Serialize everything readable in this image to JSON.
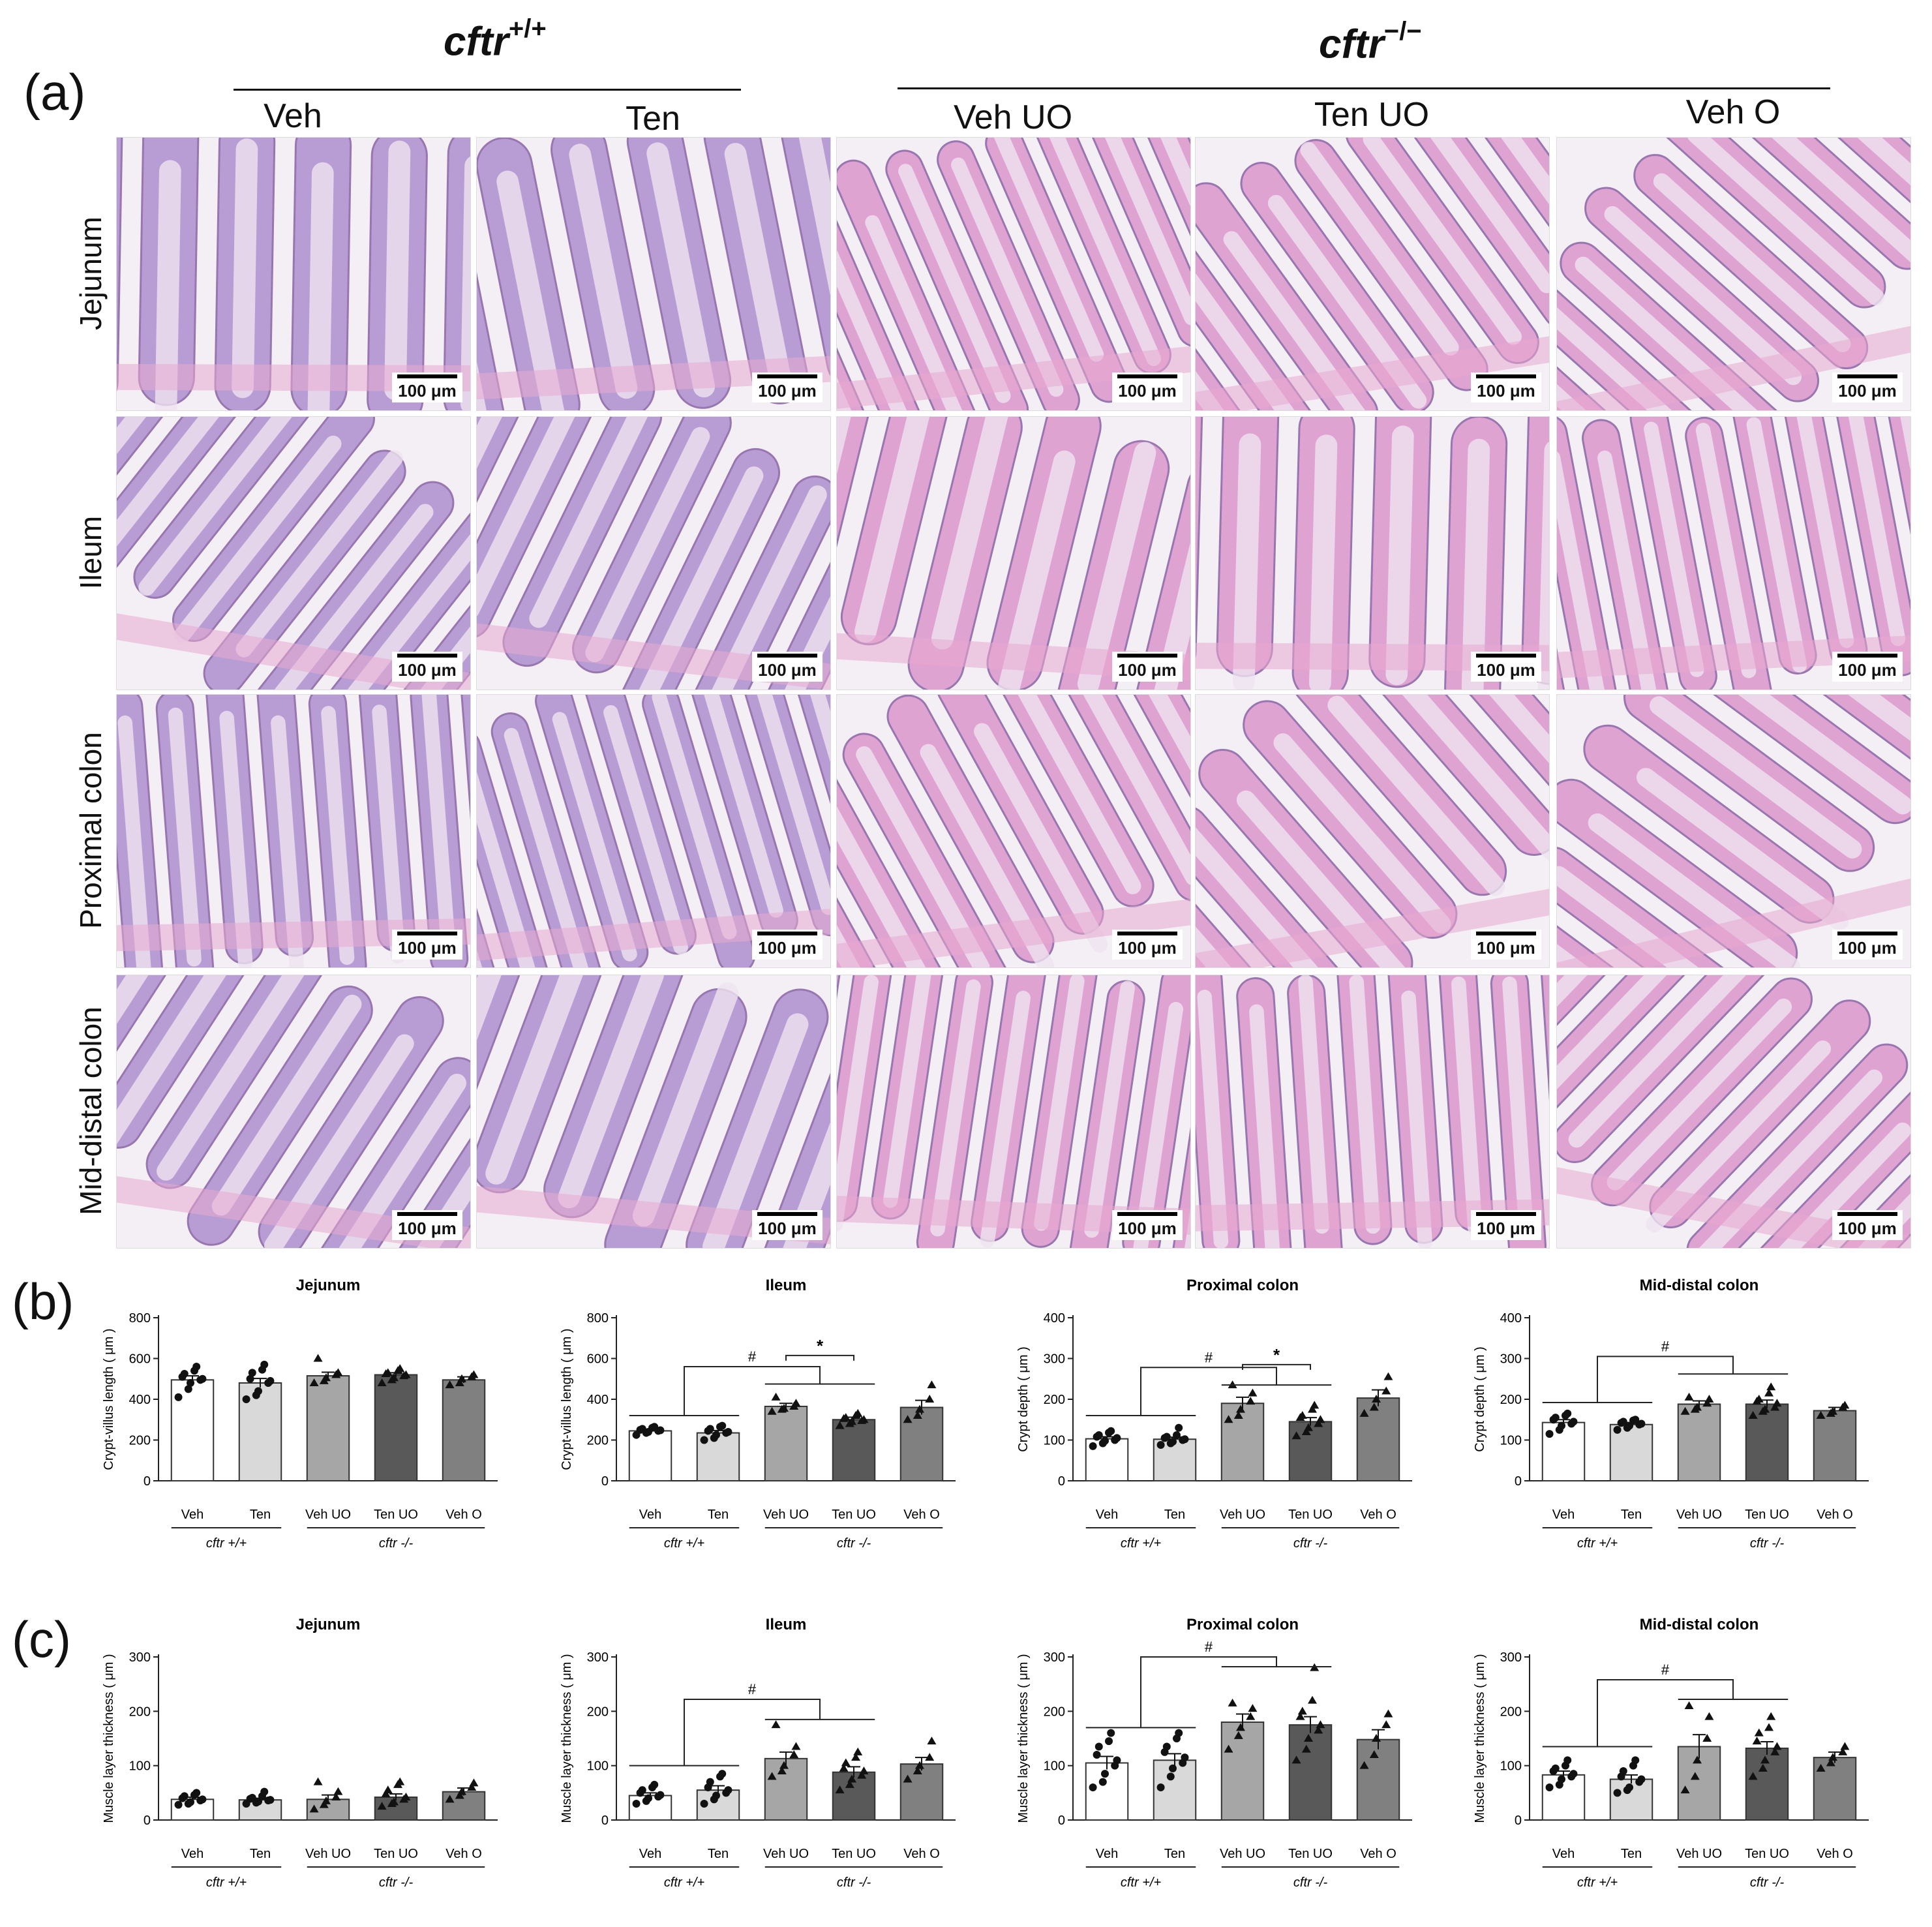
{
  "panel_labels": {
    "a": "(a)",
    "b": "(b)",
    "c": "(c)"
  },
  "genotypes": {
    "wt": {
      "name": "cftr",
      "sup": "+/+"
    },
    "ko": {
      "name": "cftr",
      "sup": "−/−"
    }
  },
  "columns": [
    "Veh",
    "Ten",
    "Veh UO",
    "Ten UO",
    "Veh O"
  ],
  "rows": [
    "Jejunum",
    "Ileum",
    "Proximal colon",
    "Mid-distal colon"
  ],
  "scale_bar": "100 μm",
  "colors": {
    "veh": "#ffffff",
    "ten": "#d9d9d9",
    "veh_uo": "#a6a6a6",
    "ten_uo": "#595959",
    "veh_o": "#808080",
    "tissue_pink": "#d98bc6",
    "tissue_purple": "#a583c9",
    "background": "#f4eef5"
  },
  "group_labels": {
    "wt": "cftr +/+",
    "ko": "cftr -/-"
  },
  "chart_data": [
    {
      "panel": "b",
      "type": "bar",
      "title": "Jejunum",
      "ylabel": "Crypt-villus length ( μm )",
      "ylim": [
        0,
        800
      ],
      "yticks": [
        0,
        200,
        400,
        600,
        800
      ],
      "categories": [
        "Veh",
        "Ten",
        "Veh UO",
        "Ten UO",
        "Veh O"
      ],
      "values": [
        495,
        480,
        515,
        520,
        495
      ],
      "sem": [
        20,
        22,
        18,
        10,
        15
      ],
      "points": [
        [
          410,
          450,
          480,
          495,
          500,
          510,
          525,
          540,
          560
        ],
        [
          400,
          420,
          440,
          480,
          490,
          500,
          530,
          545,
          570
        ],
        [
          480,
          490,
          505,
          520,
          530,
          600
        ],
        [
          480,
          495,
          505,
          515,
          520,
          525,
          530,
          540,
          550
        ],
        [
          470,
          480,
          500,
          510,
          520
        ]
      ],
      "annotations": []
    },
    {
      "panel": "b",
      "type": "bar",
      "title": "Ileum",
      "ylabel": "Crypt-villus length ( μm )",
      "ylim": [
        0,
        800
      ],
      "yticks": [
        0,
        200,
        400,
        600,
        800
      ],
      "categories": [
        "Veh",
        "Ten",
        "Veh UO",
        "Ten UO",
        "Veh O"
      ],
      "values": [
        245,
        235,
        365,
        300,
        360
      ],
      "sem": [
        8,
        12,
        15,
        12,
        35
      ],
      "points": [
        [
          225,
          235,
          240,
          245,
          248,
          250,
          255,
          260,
          265
        ],
        [
          200,
          210,
          225,
          235,
          240,
          245,
          255,
          265,
          270
        ],
        [
          340,
          350,
          355,
          365,
          380,
          410
        ],
        [
          270,
          280,
          290,
          295,
          300,
          305,
          310,
          320,
          330
        ],
        [
          300,
          320,
          350,
          400,
          470
        ]
      ],
      "annotations": [
        {
          "type": "bracket-lr",
          "left": [
            0,
            1
          ],
          "right": [
            2,
            3
          ],
          "left_y": 320,
          "right_y": 475,
          "top_y": 560,
          "label": "#"
        },
        {
          "type": "bar",
          "from": 2,
          "to": 3,
          "y": 615,
          "label": "*"
        }
      ]
    },
    {
      "panel": "b",
      "type": "bar",
      "title": "Proximal colon",
      "ylabel": "Crypt depth ( μm )",
      "ylim": [
        0,
        400
      ],
      "yticks": [
        0,
        100,
        200,
        300,
        400
      ],
      "categories": [
        "Veh",
        "Ten",
        "Veh UO",
        "Ten UO",
        "Veh O"
      ],
      "values": [
        103,
        102,
        190,
        145,
        203
      ],
      "sem": [
        5,
        5,
        15,
        10,
        20
      ],
      "points": [
        [
          85,
          92,
          98,
          100,
          105,
          108,
          112,
          118,
          122
        ],
        [
          88,
          92,
          96,
          100,
          102,
          105,
          108,
          112,
          130
        ],
        [
          150,
          160,
          175,
          195,
          215,
          235
        ],
        [
          110,
          120,
          130,
          140,
          150,
          155,
          160,
          175,
          185
        ],
        [
          165,
          180,
          200,
          220,
          255
        ]
      ],
      "annotations": [
        {
          "type": "bracket-lr",
          "left": [
            0,
            1
          ],
          "right": [
            2,
            3
          ],
          "left_y": 160,
          "right_y": 235,
          "top_y": 278,
          "label": "#"
        },
        {
          "type": "bar",
          "from": 2,
          "to": 3,
          "y": 285,
          "label": "*"
        }
      ]
    },
    {
      "panel": "b",
      "type": "bar",
      "title": "Mid-distal colon",
      "ylabel": "Crypt depth ( μm )",
      "ylim": [
        0,
        400
      ],
      "yticks": [
        0,
        100,
        200,
        300,
        400
      ],
      "categories": [
        "Veh",
        "Ten",
        "Veh UO",
        "Ten UO",
        "Veh O"
      ],
      "values": [
        143,
        138,
        188,
        188,
        172
      ],
      "sem": [
        7,
        5,
        8,
        10,
        8
      ],
      "points": [
        [
          115,
          125,
          135,
          140,
          145,
          150,
          155,
          160,
          165
        ],
        [
          125,
          130,
          135,
          138,
          140,
          142,
          145,
          148,
          150
        ],
        [
          170,
          175,
          180,
          190,
          200,
          205
        ],
        [
          160,
          170,
          175,
          180,
          190,
          195,
          200,
          215,
          230
        ],
        [
          160,
          165,
          170,
          180,
          185
        ]
      ],
      "annotations": [
        {
          "type": "bracket-lr",
          "left": [
            0,
            1
          ],
          "right": [
            2,
            3
          ],
          "left_y": 192,
          "right_y": 262,
          "top_y": 305,
          "label": "#"
        }
      ]
    },
    {
      "panel": "c",
      "type": "bar",
      "title": "Jejunum",
      "ylabel": "Muscle layer thickness ( μm )",
      "ylim": [
        0,
        300
      ],
      "yticks": [
        0,
        100,
        200,
        300
      ],
      "categories": [
        "Veh",
        "Ten",
        "Veh UO",
        "Ten UO",
        "Veh O"
      ],
      "values": [
        38,
        37,
        38,
        42,
        52
      ],
      "sem": [
        4,
        3,
        8,
        6,
        7
      ],
      "points": [
        [
          28,
          30,
          33,
          36,
          38,
          40,
          44,
          46,
          50
        ],
        [
          30,
          32,
          34,
          36,
          37,
          39,
          41,
          44,
          52
        ],
        [
          20,
          28,
          35,
          42,
          52,
          70
        ],
        [
          25,
          30,
          33,
          38,
          42,
          48,
          55,
          65,
          70
        ],
        [
          38,
          45,
          52,
          60,
          68
        ]
      ],
      "annotations": []
    },
    {
      "panel": "c",
      "type": "bar",
      "title": "Ileum",
      "ylabel": "Muscle layer thickness ( μm )",
      "ylim": [
        0,
        300
      ],
      "yticks": [
        0,
        100,
        200,
        300
      ],
      "categories": [
        "Veh",
        "Ten",
        "Veh UO",
        "Ten UO",
        "Veh O"
      ],
      "values": [
        45,
        55,
        113,
        88,
        103
      ],
      "sem": [
        5,
        8,
        12,
        10,
        12
      ],
      "points": [
        [
          30,
          35,
          40,
          43,
          46,
          50,
          55,
          60,
          65
        ],
        [
          30,
          38,
          45,
          50,
          55,
          60,
          70,
          80,
          85
        ],
        [
          80,
          90,
          100,
          120,
          135,
          175
        ],
        [
          55,
          65,
          75,
          82,
          90,
          95,
          105,
          115,
          125
        ],
        [
          75,
          90,
          100,
          115,
          145
        ]
      ],
      "annotations": [
        {
          "type": "bracket-lr",
          "left": [
            0,
            1
          ],
          "right": [
            2,
            3
          ],
          "left_y": 100,
          "right_y": 185,
          "top_y": 222,
          "label": "#"
        }
      ]
    },
    {
      "panel": "c",
      "type": "bar",
      "title": "Proximal colon",
      "ylabel": "Muscle layer thickness ( μm )",
      "ylim": [
        0,
        300
      ],
      "yticks": [
        0,
        100,
        200,
        300
      ],
      "categories": [
        "Veh",
        "Ten",
        "Veh UO",
        "Ten UO",
        "Veh O"
      ],
      "values": [
        105,
        110,
        180,
        175,
        148
      ],
      "sem": [
        12,
        12,
        15,
        15,
        18
      ],
      "points": [
        [
          60,
          70,
          85,
          100,
          110,
          120,
          135,
          145,
          160
        ],
        [
          60,
          80,
          95,
          105,
          115,
          125,
          135,
          150,
          160
        ],
        [
          130,
          155,
          170,
          190,
          205,
          215
        ],
        [
          110,
          130,
          150,
          165,
          175,
          190,
          200,
          220,
          280
        ],
        [
          100,
          120,
          150,
          175,
          195
        ]
      ],
      "annotations": [
        {
          "type": "bracket-lr",
          "left": [
            0,
            1
          ],
          "right": [
            2,
            3
          ],
          "left_y": 170,
          "right_y": 282,
          "top_y": 300,
          "label": "#"
        }
      ]
    },
    {
      "panel": "c",
      "type": "bar",
      "title": "Mid-distal colon",
      "ylabel": "Muscle layer thickness ( μm )",
      "ylim": [
        0,
        300
      ],
      "yticks": [
        0,
        100,
        200,
        300
      ],
      "categories": [
        "Veh",
        "Ten",
        "Veh UO",
        "Ten UO",
        "Veh O"
      ],
      "values": [
        83,
        75,
        135,
        132,
        115
      ],
      "sem": [
        7,
        8,
        22,
        12,
        10
      ],
      "points": [
        [
          60,
          65,
          75,
          80,
          85,
          90,
          95,
          100,
          110
        ],
        [
          50,
          55,
          60,
          70,
          75,
          80,
          90,
          100,
          110
        ],
        [
          55,
          80,
          110,
          150,
          190,
          210
        ],
        [
          80,
          95,
          110,
          125,
          135,
          145,
          160,
          170,
          190
        ],
        [
          95,
          105,
          115,
          125,
          135
        ]
      ],
      "annotations": [
        {
          "type": "bracket-lr",
          "left": [
            0,
            1
          ],
          "right": [
            2,
            3
          ],
          "left_y": 135,
          "right_y": 222,
          "top_y": 258,
          "label": "#"
        }
      ]
    }
  ]
}
